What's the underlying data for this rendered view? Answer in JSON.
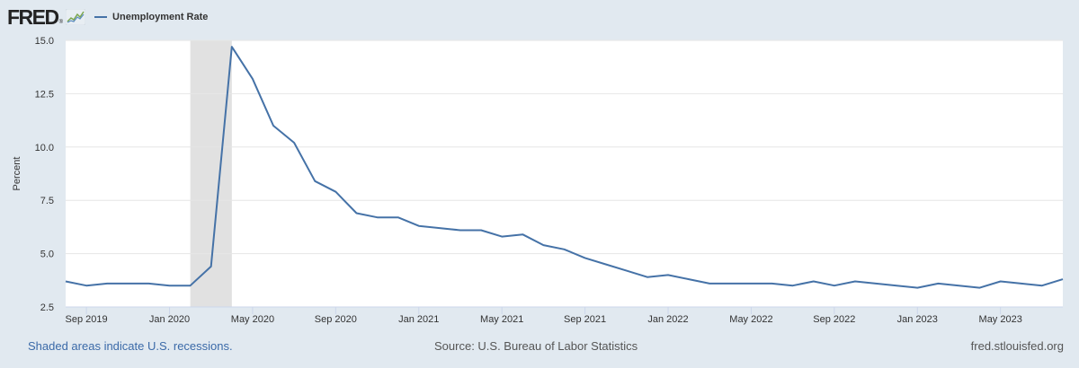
{
  "header": {
    "logo_text": "FRED",
    "logo_dot": "®",
    "legend_label": "Unemployment Rate"
  },
  "footer": {
    "recession_note": "Shaded areas indicate U.S. recessions.",
    "source": "Source: U.S. Bureau of Labor Statistics",
    "site": "fred.stlouisfed.org"
  },
  "colors": {
    "background": "#e1e9f0",
    "plot_background": "#ffffff",
    "series": "#4572a7",
    "recession": "#e1e1e1",
    "link": "#3b6aa8"
  },
  "chart_data": {
    "type": "line",
    "title": "",
    "xlabel": "",
    "ylabel": "Percent",
    "ylim": [
      2.5,
      15.0
    ],
    "yticks": [
      "2.5",
      "5.0",
      "7.5",
      "10.0",
      "12.5",
      "15.0"
    ],
    "ytick_values": [
      2.5,
      5.0,
      7.5,
      10.0,
      12.5,
      15.0
    ],
    "xlim": [
      "2019-08",
      "2023-08"
    ],
    "xticks": [
      {
        "date": "2019-09",
        "label": "Sep 2019"
      },
      {
        "date": "2020-01",
        "label": "Jan 2020"
      },
      {
        "date": "2020-05",
        "label": "May 2020"
      },
      {
        "date": "2020-09",
        "label": "Sep 2020"
      },
      {
        "date": "2021-01",
        "label": "Jan 2021"
      },
      {
        "date": "2021-05",
        "label": "May 2021"
      },
      {
        "date": "2021-09",
        "label": "Sep 2021"
      },
      {
        "date": "2022-01",
        "label": "Jan 2022"
      },
      {
        "date": "2022-05",
        "label": "May 2022"
      },
      {
        "date": "2022-09",
        "label": "Sep 2022"
      },
      {
        "date": "2023-01",
        "label": "Jan 2023"
      },
      {
        "date": "2023-05",
        "label": "May 2023"
      }
    ],
    "grid": true,
    "legend": "top-left",
    "recessions": [
      {
        "start": "2020-02",
        "end": "2020-04"
      }
    ],
    "series": [
      {
        "name": "Unemployment Rate",
        "x": [
          "2019-08",
          "2019-09",
          "2019-10",
          "2019-11",
          "2019-12",
          "2020-01",
          "2020-02",
          "2020-03",
          "2020-04",
          "2020-05",
          "2020-06",
          "2020-07",
          "2020-08",
          "2020-09",
          "2020-10",
          "2020-11",
          "2020-12",
          "2021-01",
          "2021-02",
          "2021-03",
          "2021-04",
          "2021-05",
          "2021-06",
          "2021-07",
          "2021-08",
          "2021-09",
          "2021-10",
          "2021-11",
          "2021-12",
          "2022-01",
          "2022-02",
          "2022-03",
          "2022-04",
          "2022-05",
          "2022-06",
          "2022-07",
          "2022-08",
          "2022-09",
          "2022-10",
          "2022-11",
          "2022-12",
          "2023-01",
          "2023-02",
          "2023-03",
          "2023-04",
          "2023-05",
          "2023-06",
          "2023-07",
          "2023-08"
        ],
        "values": [
          3.7,
          3.5,
          3.6,
          3.6,
          3.6,
          3.5,
          3.5,
          4.4,
          14.7,
          13.2,
          11.0,
          10.2,
          8.4,
          7.9,
          6.9,
          6.7,
          6.7,
          6.3,
          6.2,
          6.1,
          6.1,
          5.8,
          5.9,
          5.4,
          5.2,
          4.8,
          4.5,
          4.2,
          3.9,
          4.0,
          3.8,
          3.6,
          3.6,
          3.6,
          3.6,
          3.5,
          3.7,
          3.5,
          3.7,
          3.6,
          3.5,
          3.4,
          3.6,
          3.5,
          3.4,
          3.7,
          3.6,
          3.5,
          3.8
        ]
      }
    ]
  }
}
